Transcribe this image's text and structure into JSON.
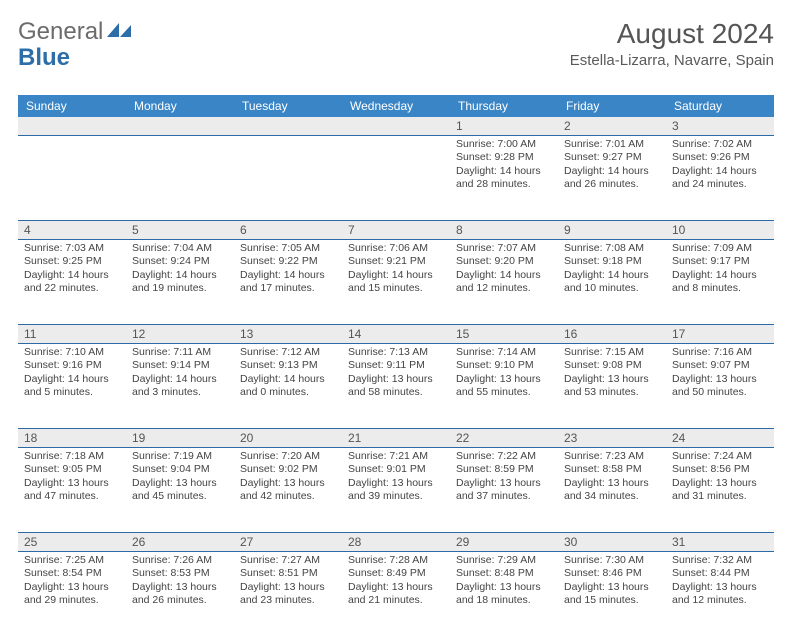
{
  "logo": {
    "part1": "General",
    "part2": "Blue"
  },
  "title": "August 2024",
  "location": "Estella-Lizarra, Navarre, Spain",
  "colors": {
    "header_bg": "#3a85c6",
    "header_text": "#ffffff",
    "daynum_bg": "#ececec",
    "week_border": "#2a6aa5",
    "body_text": "#444444",
    "title_text": "#555555",
    "logo_blue": "#2d6ea8",
    "logo_gray": "#6b6b6b"
  },
  "day_names": [
    "Sunday",
    "Monday",
    "Tuesday",
    "Wednesday",
    "Thursday",
    "Friday",
    "Saturday"
  ],
  "weeks": [
    [
      null,
      null,
      null,
      null,
      {
        "n": "1",
        "sr": "Sunrise: 7:00 AM",
        "ss": "Sunset: 9:28 PM",
        "d1": "Daylight: 14 hours",
        "d2": "and 28 minutes."
      },
      {
        "n": "2",
        "sr": "Sunrise: 7:01 AM",
        "ss": "Sunset: 9:27 PM",
        "d1": "Daylight: 14 hours",
        "d2": "and 26 minutes."
      },
      {
        "n": "3",
        "sr": "Sunrise: 7:02 AM",
        "ss": "Sunset: 9:26 PM",
        "d1": "Daylight: 14 hours",
        "d2": "and 24 minutes."
      }
    ],
    [
      {
        "n": "4",
        "sr": "Sunrise: 7:03 AM",
        "ss": "Sunset: 9:25 PM",
        "d1": "Daylight: 14 hours",
        "d2": "and 22 minutes."
      },
      {
        "n": "5",
        "sr": "Sunrise: 7:04 AM",
        "ss": "Sunset: 9:24 PM",
        "d1": "Daylight: 14 hours",
        "d2": "and 19 minutes."
      },
      {
        "n": "6",
        "sr": "Sunrise: 7:05 AM",
        "ss": "Sunset: 9:22 PM",
        "d1": "Daylight: 14 hours",
        "d2": "and 17 minutes."
      },
      {
        "n": "7",
        "sr": "Sunrise: 7:06 AM",
        "ss": "Sunset: 9:21 PM",
        "d1": "Daylight: 14 hours",
        "d2": "and 15 minutes."
      },
      {
        "n": "8",
        "sr": "Sunrise: 7:07 AM",
        "ss": "Sunset: 9:20 PM",
        "d1": "Daylight: 14 hours",
        "d2": "and 12 minutes."
      },
      {
        "n": "9",
        "sr": "Sunrise: 7:08 AM",
        "ss": "Sunset: 9:18 PM",
        "d1": "Daylight: 14 hours",
        "d2": "and 10 minutes."
      },
      {
        "n": "10",
        "sr": "Sunrise: 7:09 AM",
        "ss": "Sunset: 9:17 PM",
        "d1": "Daylight: 14 hours",
        "d2": "and 8 minutes."
      }
    ],
    [
      {
        "n": "11",
        "sr": "Sunrise: 7:10 AM",
        "ss": "Sunset: 9:16 PM",
        "d1": "Daylight: 14 hours",
        "d2": "and 5 minutes."
      },
      {
        "n": "12",
        "sr": "Sunrise: 7:11 AM",
        "ss": "Sunset: 9:14 PM",
        "d1": "Daylight: 14 hours",
        "d2": "and 3 minutes."
      },
      {
        "n": "13",
        "sr": "Sunrise: 7:12 AM",
        "ss": "Sunset: 9:13 PM",
        "d1": "Daylight: 14 hours",
        "d2": "and 0 minutes."
      },
      {
        "n": "14",
        "sr": "Sunrise: 7:13 AM",
        "ss": "Sunset: 9:11 PM",
        "d1": "Daylight: 13 hours",
        "d2": "and 58 minutes."
      },
      {
        "n": "15",
        "sr": "Sunrise: 7:14 AM",
        "ss": "Sunset: 9:10 PM",
        "d1": "Daylight: 13 hours",
        "d2": "and 55 minutes."
      },
      {
        "n": "16",
        "sr": "Sunrise: 7:15 AM",
        "ss": "Sunset: 9:08 PM",
        "d1": "Daylight: 13 hours",
        "d2": "and 53 minutes."
      },
      {
        "n": "17",
        "sr": "Sunrise: 7:16 AM",
        "ss": "Sunset: 9:07 PM",
        "d1": "Daylight: 13 hours",
        "d2": "and 50 minutes."
      }
    ],
    [
      {
        "n": "18",
        "sr": "Sunrise: 7:18 AM",
        "ss": "Sunset: 9:05 PM",
        "d1": "Daylight: 13 hours",
        "d2": "and 47 minutes."
      },
      {
        "n": "19",
        "sr": "Sunrise: 7:19 AM",
        "ss": "Sunset: 9:04 PM",
        "d1": "Daylight: 13 hours",
        "d2": "and 45 minutes."
      },
      {
        "n": "20",
        "sr": "Sunrise: 7:20 AM",
        "ss": "Sunset: 9:02 PM",
        "d1": "Daylight: 13 hours",
        "d2": "and 42 minutes."
      },
      {
        "n": "21",
        "sr": "Sunrise: 7:21 AM",
        "ss": "Sunset: 9:01 PM",
        "d1": "Daylight: 13 hours",
        "d2": "and 39 minutes."
      },
      {
        "n": "22",
        "sr": "Sunrise: 7:22 AM",
        "ss": "Sunset: 8:59 PM",
        "d1": "Daylight: 13 hours",
        "d2": "and 37 minutes."
      },
      {
        "n": "23",
        "sr": "Sunrise: 7:23 AM",
        "ss": "Sunset: 8:58 PM",
        "d1": "Daylight: 13 hours",
        "d2": "and 34 minutes."
      },
      {
        "n": "24",
        "sr": "Sunrise: 7:24 AM",
        "ss": "Sunset: 8:56 PM",
        "d1": "Daylight: 13 hours",
        "d2": "and 31 minutes."
      }
    ],
    [
      {
        "n": "25",
        "sr": "Sunrise: 7:25 AM",
        "ss": "Sunset: 8:54 PM",
        "d1": "Daylight: 13 hours",
        "d2": "and 29 minutes."
      },
      {
        "n": "26",
        "sr": "Sunrise: 7:26 AM",
        "ss": "Sunset: 8:53 PM",
        "d1": "Daylight: 13 hours",
        "d2": "and 26 minutes."
      },
      {
        "n": "27",
        "sr": "Sunrise: 7:27 AM",
        "ss": "Sunset: 8:51 PM",
        "d1": "Daylight: 13 hours",
        "d2": "and 23 minutes."
      },
      {
        "n": "28",
        "sr": "Sunrise: 7:28 AM",
        "ss": "Sunset: 8:49 PM",
        "d1": "Daylight: 13 hours",
        "d2": "and 21 minutes."
      },
      {
        "n": "29",
        "sr": "Sunrise: 7:29 AM",
        "ss": "Sunset: 8:48 PM",
        "d1": "Daylight: 13 hours",
        "d2": "and 18 minutes."
      },
      {
        "n": "30",
        "sr": "Sunrise: 7:30 AM",
        "ss": "Sunset: 8:46 PM",
        "d1": "Daylight: 13 hours",
        "d2": "and 15 minutes."
      },
      {
        "n": "31",
        "sr": "Sunrise: 7:32 AM",
        "ss": "Sunset: 8:44 PM",
        "d1": "Daylight: 13 hours",
        "d2": "and 12 minutes."
      }
    ]
  ]
}
